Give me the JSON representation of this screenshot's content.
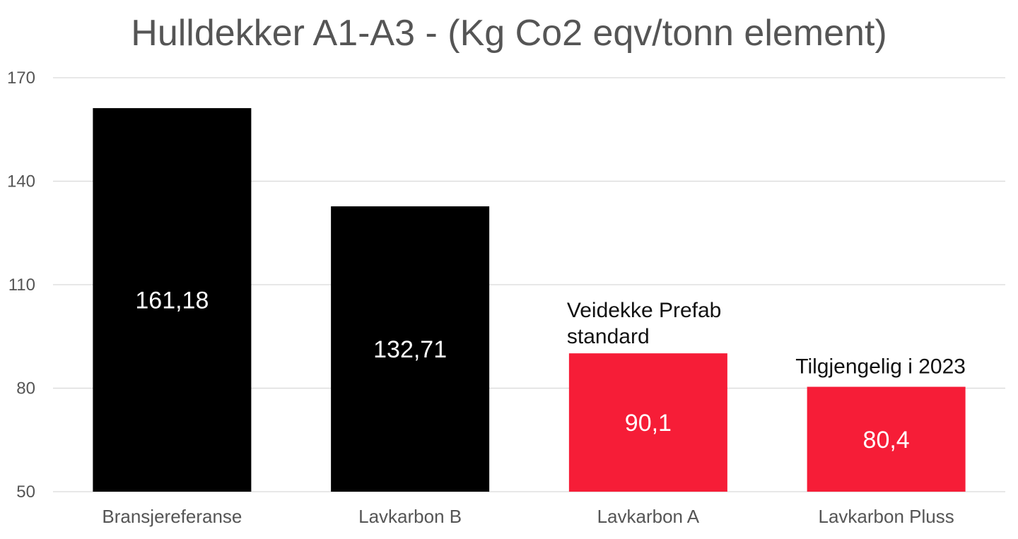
{
  "chart_data": {
    "type": "bar",
    "title": "Hulldekker A1-A3 - (Kg Co2 eqv/tonn element)",
    "categories": [
      "Bransjereferanse",
      "Lavkarbon B",
      "Lavkarbon A",
      "Lavkarbon Pluss"
    ],
    "values": [
      161.18,
      132.71,
      90.1,
      80.4
    ],
    "data_labels": [
      "161,18",
      "132,71",
      "90,1",
      "80,4"
    ],
    "bar_colors": [
      "#000000",
      "#000000",
      "#f61d37",
      "#f61d37"
    ],
    "ylim": [
      50,
      170
    ],
    "yticks": [
      50,
      80,
      110,
      140,
      170
    ],
    "ytick_labels": [
      "50",
      "80",
      "110",
      "140",
      "170"
    ],
    "grid": true,
    "legend": "none",
    "annotations": [
      {
        "category": "Lavkarbon A",
        "lines": [
          "Veidekke Prefab",
          "standard"
        ]
      },
      {
        "category": "Lavkarbon Pluss",
        "lines": [
          "Tilgjengelig i 2023"
        ]
      }
    ],
    "colors": {
      "title": "#555555",
      "axis_text": "#555555",
      "gridline": "#d9d9d9",
      "data_label": "#ffffff",
      "annotation": "#111111"
    }
  }
}
